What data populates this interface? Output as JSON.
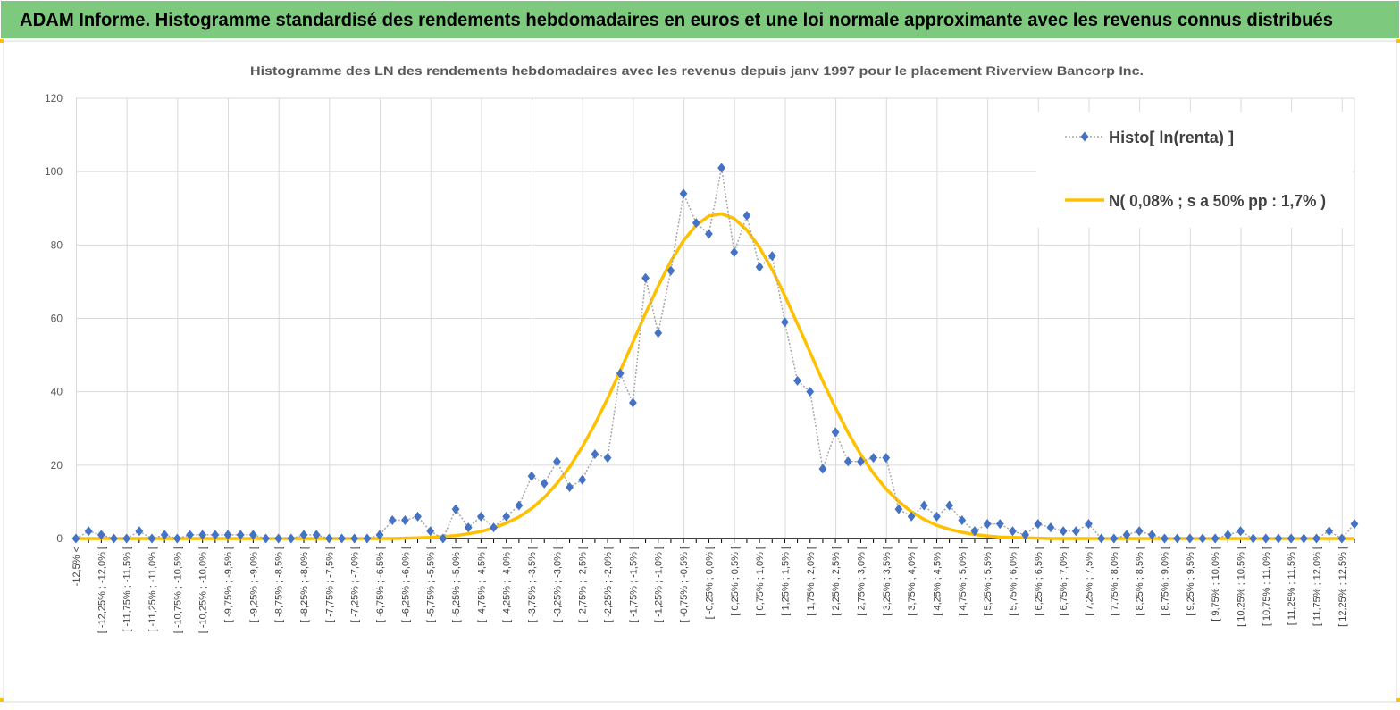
{
  "header": {
    "title": "ADAM Informe. Histogramme standardisé des rendements hebdomadaires en euros et une loi normale approximante avec les revenus connus distribués"
  },
  "chart_data": {
    "type": "line",
    "title": "Histogramme  des LN des rendements  hebdomadaires avec les revenus depuis janv 1997 pour le placement Riverview Bancorp Inc.",
    "categories": [
      "-12,5% <",
      null,
      "[ -12,25% ; -12,0% [",
      null,
      "[ -11,75% ; -11,5% [",
      null,
      "[ -11,25% ; -11,0% [",
      null,
      "[ -10,75% ; -10,5% [",
      null,
      "[ -10,25% ; -10,0% [",
      null,
      "[ -9,75% ; -9,5% [",
      null,
      "[ -9,25% ; -9,0% [",
      null,
      "[ -8,75% ; -8,5% [",
      null,
      "[ -8,25% ; -8,0% [",
      null,
      "[ -7,75% ; -7,5% [",
      null,
      "[ -7,25% ; -7,0% [",
      null,
      "[ -6,75% ; -6,5% [",
      null,
      "[ -6,25% ; -6,0% [",
      null,
      "[ -5,75% ; -5,5% [",
      null,
      "[ -5,25% ; -5,0% [",
      null,
      "[ -4,75% ; -4,5% [",
      null,
      "[ -4,25% ; -4,0% [",
      null,
      "[ -3,75% ; -3,5% [",
      null,
      "[ -3,25% ; -3,0% [",
      null,
      "[ -2,75% ; -2,5% [",
      null,
      "[ -2,25% ; -2,0% [",
      null,
      "[ -1,75% ; -1,5% [",
      null,
      "[ -1,25% ; -1,0% [",
      null,
      "[ -0,75% ; -0,5% [",
      null,
      "[ -0,25% ; 0,0% [",
      null,
      "[ 0,25% ; 0,5% [",
      null,
      "[ 0,75% ; 1,0% [",
      null,
      "[ 1,25% ; 1,5% [",
      null,
      "[ 1,75% ; 2,0% [",
      null,
      "[ 2,25% ; 2,5% [",
      null,
      "[ 2,75% ; 3,0% [",
      null,
      "[ 3,25% ; 3,5% [",
      null,
      "[ 3,75% ; 4,0% [",
      null,
      "[ 4,25% ; 4,5% [",
      null,
      "[ 4,75% ; 5,0% [",
      null,
      "[ 5,25% ; 5,5% [",
      null,
      "[ 5,75% ; 6,0% [",
      null,
      "[ 6,25% ; 6,5% [",
      null,
      "[ 6,75% ; 7,0% [",
      null,
      "[ 7,25% ; 7,5% [",
      null,
      "[ 7,75% ; 8,0% [",
      null,
      "[ 8,25% ; 8,5% [",
      null,
      "[ 8,75% ; 9,0% [",
      null,
      "[ 9,25% ; 9,5% [",
      null,
      "[ 9,75% ; 10,0% [",
      null,
      "[ 10,25% ; 10,5% [",
      null,
      "[ 10,75% ; 11,0% [",
      null,
      "[ 11,25% ; 11,5% [",
      null,
      "[ 11,75% ; 12,0% [",
      null,
      "[ 12,25% ; 12,5% [",
      null
    ],
    "series": [
      {
        "name": "Histo[ ln(renta) ]",
        "color": "#4472c4",
        "values": [
          0,
          2,
          1,
          0,
          0,
          2,
          0,
          1,
          0,
          1,
          1,
          1,
          1,
          1,
          1,
          0,
          0,
          0,
          1,
          1,
          0,
          0,
          0,
          0,
          1,
          5,
          5,
          6,
          2,
          0,
          8,
          3,
          6,
          3,
          6,
          9,
          17,
          15,
          21,
          14,
          16,
          23,
          22,
          45,
          37,
          71,
          56,
          73,
          94,
          86,
          83,
          101,
          78,
          88,
          74,
          77,
          59,
          43,
          40,
          19,
          29,
          21,
          21,
          22,
          22,
          8,
          6,
          9,
          6,
          9,
          5,
          2,
          4,
          4,
          2,
          1,
          4,
          3,
          2,
          2,
          4,
          0,
          0,
          1,
          2,
          1,
          0,
          0,
          0,
          0,
          0,
          1,
          2,
          0,
          0,
          0,
          0,
          0,
          0,
          2,
          0,
          4
        ]
      },
      {
        "name": "N( 0,08% ; s a 50% pp : 1,7% )",
        "color": "#ffc000",
        "values": [
          0,
          0,
          0,
          0,
          0,
          0,
          0,
          0,
          0,
          0,
          0,
          0,
          0,
          0,
          0,
          0,
          0,
          0,
          0,
          0,
          0,
          0,
          0,
          0,
          0,
          0,
          0.1,
          0.2,
          0.3,
          0.5,
          0.8,
          1.3,
          1.9,
          2.9,
          4.2,
          5.9,
          8.2,
          11.2,
          15.0,
          19.5,
          25.0,
          31.2,
          38.2,
          45.7,
          53.5,
          61.4,
          68.8,
          75.6,
          81.2,
          85.4,
          87.9,
          88.5,
          87.2,
          84.1,
          79.3,
          73.3,
          66.2,
          58.5,
          50.7,
          42.9,
          35.6,
          28.8,
          22.9,
          17.8,
          13.5,
          10.1,
          7.3,
          5.2,
          3.6,
          2.5,
          1.7,
          1.1,
          0.7,
          0.4,
          0.3,
          0.2,
          0.1,
          0,
          0,
          0,
          0,
          0,
          0,
          0,
          0,
          0,
          0,
          0,
          0,
          0,
          0,
          0,
          0,
          0,
          0,
          0,
          0,
          0,
          0,
          0,
          0,
          0
        ]
      }
    ],
    "ylim": [
      0,
      120
    ],
    "yticks": [
      0,
      20,
      40,
      60,
      80,
      100,
      120
    ],
    "grid": true,
    "legend": "upper right"
  }
}
